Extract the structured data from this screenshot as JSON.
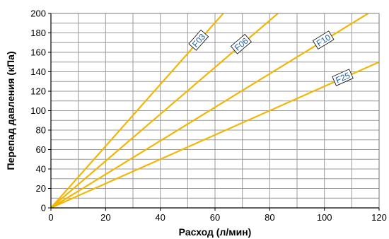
{
  "chart_data": {
    "type": "line",
    "xlabel": "Расход  (л/мин)",
    "ylabel": "Перепад давления (кПа)",
    "xlim": [
      0,
      120
    ],
    "ylim": [
      0,
      200
    ],
    "x_ticks": [
      "0",
      "20",
      "40",
      "60",
      "80",
      "100",
      "120"
    ],
    "y_ticks": [
      "0",
      "20",
      "40",
      "60",
      "80",
      "100",
      "120",
      "140",
      "160",
      "180",
      "200"
    ],
    "grid": true,
    "colors": {
      "line": "#f2b705",
      "grid": "#9a9a9a",
      "label": "#1a5fa8"
    },
    "series": [
      {
        "name": "F03",
        "x": [
          0,
          63
        ],
        "y": [
          0,
          200
        ]
      },
      {
        "name": "F06",
        "x": [
          0,
          83
        ],
        "y": [
          0,
          200
        ]
      },
      {
        "name": "F10",
        "x": [
          0,
          116
        ],
        "y": [
          0,
          200
        ]
      },
      {
        "name": "F25",
        "x": [
          0,
          120
        ],
        "y": [
          0,
          150
        ]
      }
    ]
  }
}
